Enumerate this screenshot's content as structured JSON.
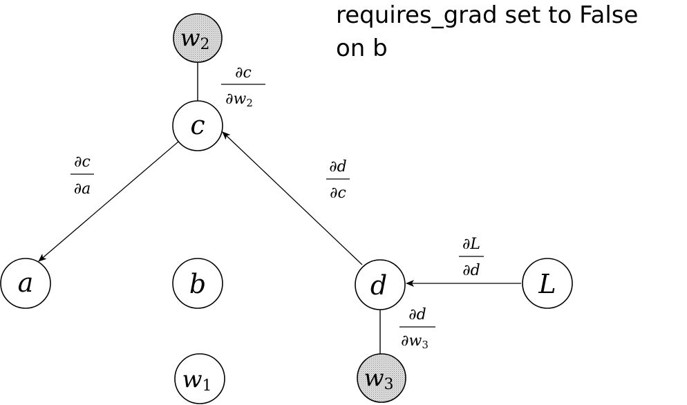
{
  "heading": {
    "line1": "requires_grad set to False",
    "line2": "on b"
  },
  "nodes": {
    "w2": {
      "symbol": "w",
      "subscript": "2",
      "shaded": true
    },
    "c": {
      "symbol": "c"
    },
    "a": {
      "symbol": "a"
    },
    "b": {
      "symbol": "b"
    },
    "d": {
      "symbol": "d"
    },
    "L": {
      "symbol": "L"
    },
    "w1": {
      "symbol": "w",
      "subscript": "1",
      "shaded": false
    },
    "w3": {
      "symbol": "w",
      "subscript": "3",
      "shaded": true
    }
  },
  "gradients": {
    "dc_dw2": {
      "numerator": "∂c",
      "denominator": "∂w",
      "denominator_subscript": "2"
    },
    "dc_da": {
      "numerator": "∂c",
      "denominator": "∂a"
    },
    "dd_dc": {
      "numerator": "∂d",
      "denominator": "∂c"
    },
    "dL_dd": {
      "numerator": "∂L",
      "denominator": "∂d"
    },
    "dd_dw3": {
      "numerator": "∂d",
      "denominator": "∂w",
      "denominator_subscript": "3"
    }
  },
  "colors": {
    "ink": "#000000",
    "shaded_fill": "#d4d4d4",
    "background": "#ffffff"
  }
}
